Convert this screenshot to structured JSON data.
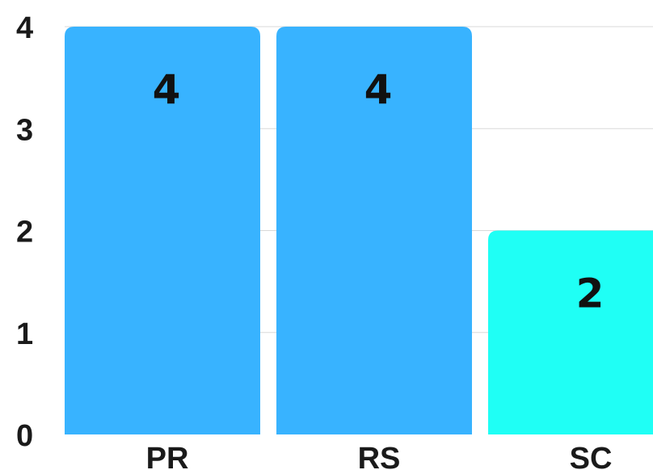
{
  "chart_data": {
    "type": "bar",
    "categories": [
      "PR",
      "RS",
      "SC"
    ],
    "values": [
      4,
      4,
      2
    ],
    "colors": [
      "#38b3ff",
      "#38b3ff",
      "#1ffff5"
    ],
    "data_labels": [
      "4",
      "4",
      "2"
    ],
    "yticks": [
      0,
      1,
      2,
      3,
      4
    ],
    "ylim": [
      0,
      4
    ],
    "grid": true,
    "title": "",
    "xlabel": "",
    "ylabel": ""
  }
}
